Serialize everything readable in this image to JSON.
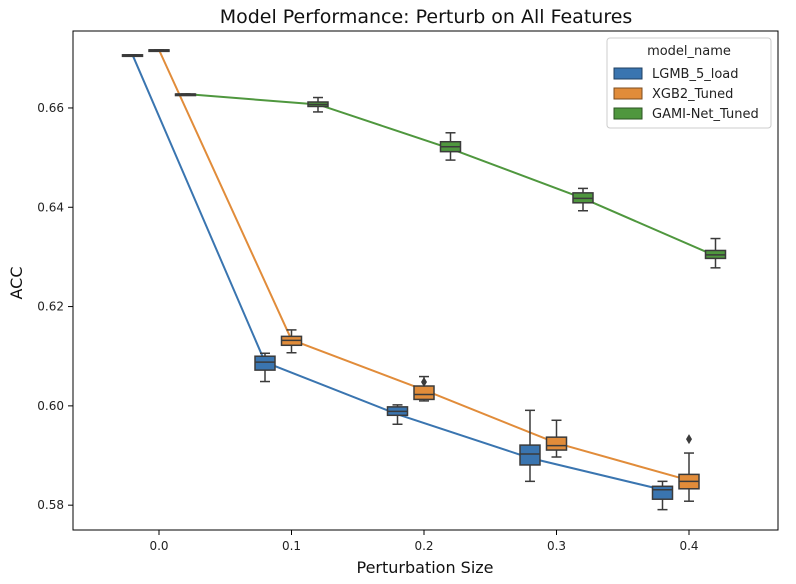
{
  "chart_data": {
    "type": "box",
    "title": "Model Performance: Perturb on All Features",
    "xlabel": "Perturbation Size",
    "ylabel": "ACC",
    "x_categories": [
      "0.0",
      "0.1",
      "0.2",
      "0.3",
      "0.4"
    ],
    "y_ticks": [
      "0.58",
      "0.60",
      "0.62",
      "0.64",
      "0.66"
    ],
    "ylim": [
      0.575,
      0.6755
    ],
    "grid": false,
    "legend": {
      "title": "model_name",
      "position": "top-right"
    },
    "series": [
      {
        "name": "LGMB_5_load",
        "color": "#3a75b0",
        "boxes": [
          {
            "x": "0.0",
            "min": 0.6707,
            "q1": 0.6707,
            "median": 0.6707,
            "q3": 0.6707,
            "max": 0.6707
          },
          {
            "x": "0.1",
            "min": 0.6049,
            "q1": 0.6072,
            "median": 0.6088,
            "q3": 0.61,
            "max": 0.6106
          },
          {
            "x": "0.2",
            "min": 0.5963,
            "q1": 0.5981,
            "median": 0.5989,
            "q3": 0.5998,
            "max": 0.6002
          },
          {
            "x": "0.3",
            "min": 0.5848,
            "q1": 0.5881,
            "median": 0.5903,
            "q3": 0.5921,
            "max": 0.5991
          },
          {
            "x": "0.4",
            "min": 0.5791,
            "q1": 0.5812,
            "median": 0.5831,
            "q3": 0.5838,
            "max": 0.5848
          }
        ],
        "means": [
          0.6707,
          0.6088,
          0.5983,
          0.5895,
          0.5831
        ],
        "outliers": []
      },
      {
        "name": "XGB2_Tuned",
        "color": "#e18c3a",
        "boxes": [
          {
            "x": "0.0",
            "min": 0.6717,
            "q1": 0.6717,
            "median": 0.6717,
            "q3": 0.6717,
            "max": 0.6717
          },
          {
            "x": "0.1",
            "min": 0.6107,
            "q1": 0.6122,
            "median": 0.6132,
            "q3": 0.614,
            "max": 0.6153
          },
          {
            "x": "0.2",
            "min": 0.601,
            "q1": 0.6013,
            "median": 0.6023,
            "q3": 0.604,
            "max": 0.6059
          },
          {
            "x": "0.3",
            "min": 0.5897,
            "q1": 0.5911,
            "median": 0.592,
            "q3": 0.5937,
            "max": 0.5971
          },
          {
            "x": "0.4",
            "min": 0.5808,
            "q1": 0.5833,
            "median": 0.5848,
            "q3": 0.5862,
            "max": 0.5905
          }
        ],
        "means": [
          0.6717,
          0.6133,
          0.6032,
          0.5925,
          0.585
        ],
        "outliers": [
          {
            "x": "0.2",
            "value": 0.6048
          },
          {
            "x": "0.4",
            "value": 0.5933
          }
        ]
      },
      {
        "name": "GAMI-Net_Tuned",
        "color": "#4f973e",
        "boxes": [
          {
            "x": "0.0",
            "min": 0.6628,
            "q1": 0.6628,
            "median": 0.6628,
            "q3": 0.6628,
            "max": 0.6628
          },
          {
            "x": "0.1",
            "min": 0.6592,
            "q1": 0.6603,
            "median": 0.6607,
            "q3": 0.6612,
            "max": 0.6621
          },
          {
            "x": "0.2",
            "min": 0.6495,
            "q1": 0.6512,
            "median": 0.6522,
            "q3": 0.6532,
            "max": 0.655
          },
          {
            "x": "0.3",
            "min": 0.6393,
            "q1": 0.6409,
            "median": 0.6418,
            "q3": 0.6429,
            "max": 0.6438
          },
          {
            "x": "0.4",
            "min": 0.6278,
            "q1": 0.6297,
            "median": 0.6304,
            "q3": 0.6313,
            "max": 0.6337
          }
        ],
        "means": [
          0.6628,
          0.6607,
          0.6518,
          0.6418,
          0.6302
        ],
        "outliers": []
      }
    ]
  }
}
